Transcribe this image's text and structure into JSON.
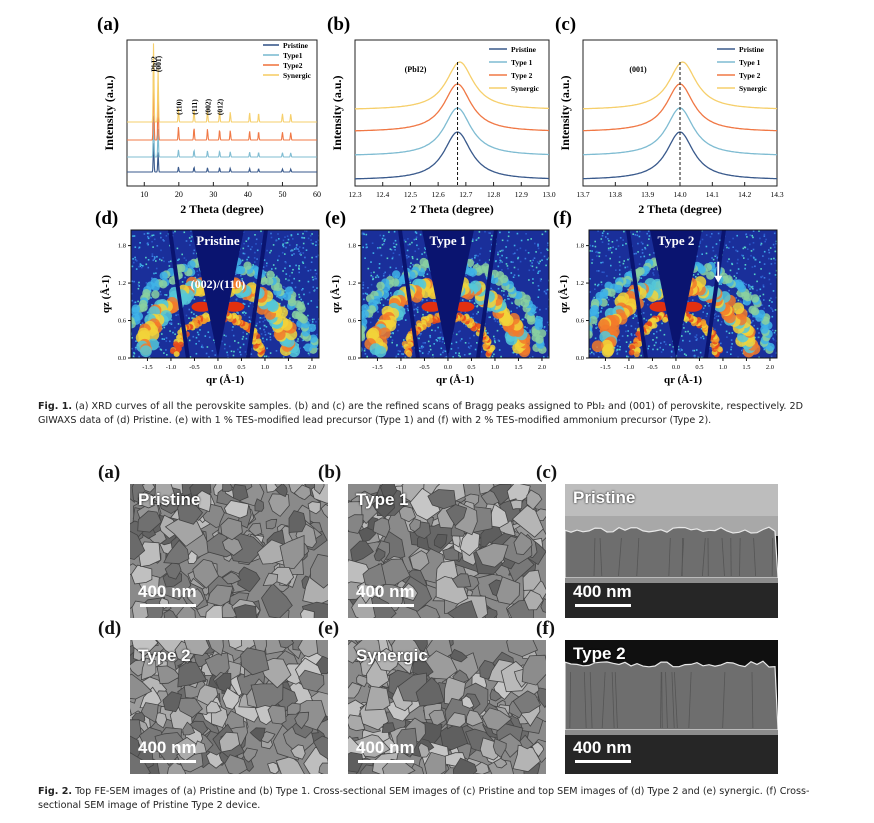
{
  "fig1": {
    "panel_labels": [
      "(a)",
      "(b)",
      "(c)",
      "(d)",
      "(e)",
      "(f)"
    ],
    "chart_data": [
      {
        "type": "line",
        "panel": "(a)",
        "xlabel": "2 Theta (degree)",
        "ylabel": "Intensity (a.u.)",
        "xlim": [
          5,
          60
        ],
        "xticks": [
          "10",
          "20",
          "30",
          "40",
          "50",
          "60"
        ],
        "legend": [
          "Pristine",
          "Type1",
          "Type2",
          "Synergic"
        ],
        "legend_position": "top-right",
        "peak_labels": [
          "PbI2",
          "(001)",
          "(110)",
          "(111)",
          "(002)",
          "(012)"
        ],
        "peaks_2theta": [
          12.7,
          14.0,
          19.9,
          24.4,
          28.3,
          31.8,
          34.9,
          40.5,
          43.1,
          50.0,
          52.4
        ],
        "series": [
          {
            "name": "Pristine",
            "color": "#3a5a8c"
          },
          {
            "name": "Type1",
            "color": "#7fbcd2"
          },
          {
            "name": "Type2",
            "color": "#f07845"
          },
          {
            "name": "Synergic",
            "color": "#f6cf6b"
          }
        ]
      },
      {
        "type": "line",
        "panel": "(b)",
        "xlabel": "2 Theta (degree)",
        "ylabel": "Intensity (a.u.)",
        "xlim": [
          12.3,
          13.0
        ],
        "xticks": [
          "12.3",
          "12.4",
          "12.5",
          "12.6",
          "12.7",
          "12.8",
          "12.9",
          "13.0"
        ],
        "legend": [
          "Pristine",
          "Type 1",
          "Type 2",
          "Synergic"
        ],
        "annotation": "(PbI2)",
        "peak_center": 12.67,
        "series": [
          {
            "name": "Pristine",
            "color": "#3a5a8c"
          },
          {
            "name": "Type 1",
            "color": "#7fbcd2"
          },
          {
            "name": "Type 2",
            "color": "#f07845"
          },
          {
            "name": "Synergic",
            "color": "#f6cf6b"
          }
        ]
      },
      {
        "type": "line",
        "panel": "(c)",
        "xlabel": "2 Theta (degree)",
        "ylabel": "Intensity (a.u.)",
        "xlim": [
          13.7,
          14.3
        ],
        "xticks": [
          "13.7",
          "13.8",
          "13.9",
          "14.0",
          "14.1",
          "14.2",
          "14.3"
        ],
        "legend": [
          "Pristine",
          "Type 1",
          "Type 2",
          "Synergic"
        ],
        "annotation": "(001)",
        "peak_center": 14.0,
        "series": [
          {
            "name": "Pristine",
            "color": "#3a5a8c"
          },
          {
            "name": "Type 1",
            "color": "#7fbcd2"
          },
          {
            "name": "Type 2",
            "color": "#f07845"
          },
          {
            "name": "Synergic",
            "color": "#f6cf6b"
          }
        ]
      },
      {
        "type": "heatmap",
        "panel": "(d)",
        "title": "Pristine",
        "annotation": "(002)/(110)",
        "xlabel": "qr (Å-1)",
        "ylabel": "qz (Å-1)",
        "xticks": [
          "-1.5",
          "-1.0",
          "-0.5",
          "0.0",
          "0.5",
          "1.0",
          "1.5",
          "2.0"
        ],
        "yticks": [
          "0.0",
          "0.6",
          "1.2",
          "1.8"
        ]
      },
      {
        "type": "heatmap",
        "panel": "(e)",
        "title": "Type 1",
        "xlabel": "qr (Å-1)",
        "ylabel": "qz (Å-1)",
        "xticks": [
          "-1.5",
          "-1.0",
          "-0.5",
          "0.0",
          "0.5",
          "1.0",
          "1.5",
          "2.0"
        ],
        "yticks": [
          "0.0",
          "0.6",
          "1.2",
          "1.8"
        ]
      },
      {
        "type": "heatmap",
        "panel": "(f)",
        "title": "Type 2",
        "xlabel": "qr (Å-1)",
        "ylabel": "qz (Å-1)",
        "xticks": [
          "-1.5",
          "-1.0",
          "-0.5",
          "0.0",
          "0.5",
          "1.0",
          "1.5",
          "2.0"
        ],
        "yticks": [
          "0.0",
          "0.6",
          "1.2",
          "1.8"
        ]
      }
    ],
    "caption_label": "Fig. 1.",
    "caption_text": "(a) XRD curves of all the perovskite samples. (b) and (c) are the refined scans of Bragg peaks assigned to PbI₂ and (001) of perovskite, respectively. 2D GIWAXS data of (d) Pristine. (e) with 1 % TES-modified lead precursor (Type 1) and (f) with 2 % TES-modified ammonium precursor (Type 2)."
  },
  "fig2": {
    "panels": [
      {
        "label": "(a)",
        "name": "Pristine",
        "scale": "400 nm"
      },
      {
        "label": "(b)",
        "name": "Type 1",
        "scale": "400 nm"
      },
      {
        "label": "(c)",
        "name": "Pristine",
        "scale": "400 nm"
      },
      {
        "label": "(d)",
        "name": "Type 2",
        "scale": "400 nm"
      },
      {
        "label": "(e)",
        "name": "Synergic",
        "scale": "400 nm"
      },
      {
        "label": "(f)",
        "name": "Type 2",
        "scale": "400 nm"
      }
    ],
    "caption_label": "Fig. 2.",
    "caption_text": "Top FE-SEM images of (a) Pristine and (b) Type 1. Cross-sectional SEM images of (c) Pristine and top SEM images of (d) Type 2 and (e) synergic. (f) Cross-sectional SEM image of Pristine Type 2 device."
  }
}
